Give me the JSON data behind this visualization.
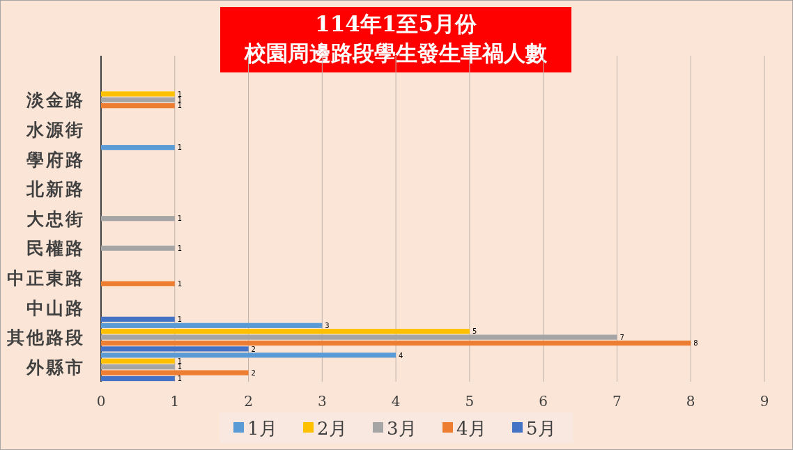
{
  "chart_data": {
    "type": "bar",
    "orientation": "horizontal",
    "title": "114年1至5月份",
    "subtitle": "校園周邊路段學生發生車禍人數",
    "categories": [
      "淡金路",
      "水源街",
      "學府路",
      "北新路",
      "大忠街",
      "民權路",
      "中正東路",
      "中山路",
      "其他路段",
      "外縣市"
    ],
    "series": [
      {
        "name": "1月",
        "color": "#5b9bd5",
        "values": [
          null,
          null,
          1,
          null,
          null,
          null,
          null,
          null,
          3,
          4
        ]
      },
      {
        "name": "2月",
        "color": "#ffc000",
        "values": [
          1,
          null,
          null,
          null,
          null,
          null,
          null,
          null,
          5,
          1
        ]
      },
      {
        "name": "3月",
        "color": "#a5a5a5",
        "values": [
          1,
          null,
          null,
          null,
          1,
          1,
          null,
          null,
          7,
          1
        ]
      },
      {
        "name": "4月",
        "color": "#ed7d31",
        "values": [
          1,
          null,
          null,
          null,
          null,
          null,
          1,
          null,
          8,
          2
        ]
      },
      {
        "name": "5月",
        "color": "#4472c4",
        "values": [
          null,
          null,
          null,
          null,
          null,
          null,
          null,
          1,
          2,
          1
        ]
      }
    ],
    "xlim": [
      0,
      9
    ],
    "xticks": [
      0,
      1,
      2,
      3,
      4,
      5,
      6,
      7,
      8,
      9
    ],
    "grid": "x",
    "legend": "bottom",
    "data_labels": true
  }
}
